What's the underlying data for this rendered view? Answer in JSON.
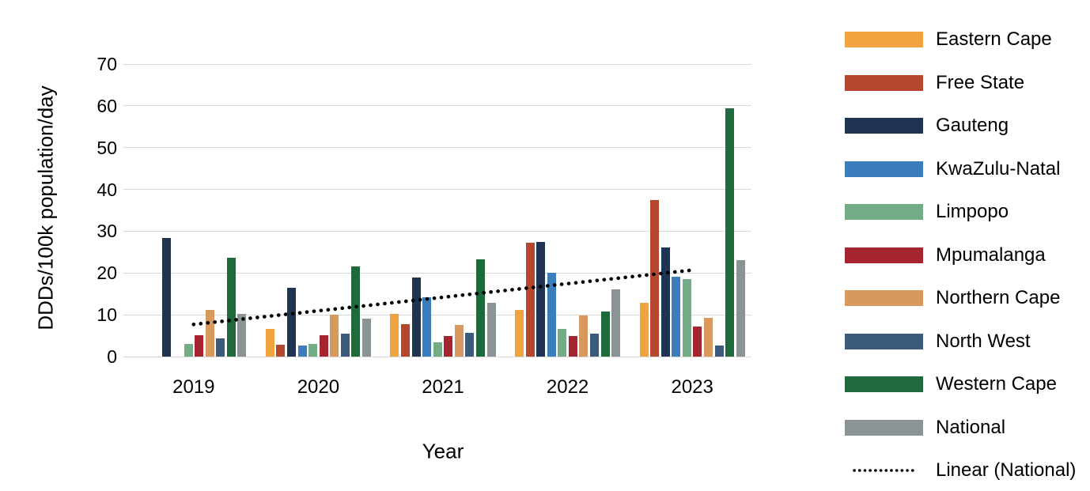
{
  "chart_data": {
    "type": "bar",
    "title": "",
    "xlabel": "Year",
    "ylabel": "DDDs/100k population/day",
    "categories": [
      "2019",
      "2020",
      "2021",
      "2022",
      "2023"
    ],
    "y_ticks": [
      0,
      10,
      20,
      30,
      40,
      50,
      60,
      70
    ],
    "ylim": [
      0,
      70
    ],
    "grid": "horizontal",
    "legend_position": "right",
    "series": [
      {
        "name": "Eastern Cape",
        "color": "#F0A33E",
        "values": [
          null,
          6.6,
          10.3,
          11.2,
          12.8
        ]
      },
      {
        "name": "Free State",
        "color": "#B5472F",
        "values": [
          null,
          2.8,
          7.8,
          27.2,
          37.4
        ]
      },
      {
        "name": "Gauteng",
        "color": "#1F3352",
        "values": [
          28.3,
          16.4,
          19.0,
          27.5,
          26.1
        ]
      },
      {
        "name": "KwaZulu-Natal",
        "color": "#3B7CBA",
        "values": [
          null,
          2.7,
          14.1,
          20.0,
          19.1
        ]
      },
      {
        "name": "Limpopo",
        "color": "#74AC85",
        "values": [
          3.1,
          3.1,
          3.4,
          6.7,
          18.5
        ]
      },
      {
        "name": "Mpumalanga",
        "color": "#A42430",
        "values": [
          5.2,
          5.2,
          5.0,
          5.0,
          7.2
        ]
      },
      {
        "name": "Northern Cape",
        "color": "#D8995F",
        "values": [
          11.2,
          10.1,
          7.6,
          9.9,
          9.2
        ]
      },
      {
        "name": "North West",
        "color": "#3C5A79",
        "values": [
          4.4,
          5.4,
          5.7,
          5.4,
          2.6
        ]
      },
      {
        "name": "Western Cape",
        "color": "#1E6A3C",
        "values": [
          23.6,
          21.6,
          23.2,
          10.8,
          59.5
        ]
      },
      {
        "name": "National",
        "color": "#8B9494",
        "values": [
          10.2,
          9.1,
          12.8,
          16.0,
          23.0
        ]
      }
    ],
    "trendline": {
      "label": "Linear (National)",
      "color": "#000000",
      "style": "dotted",
      "start_value": 7.7,
      "end_value": 20.7
    }
  }
}
